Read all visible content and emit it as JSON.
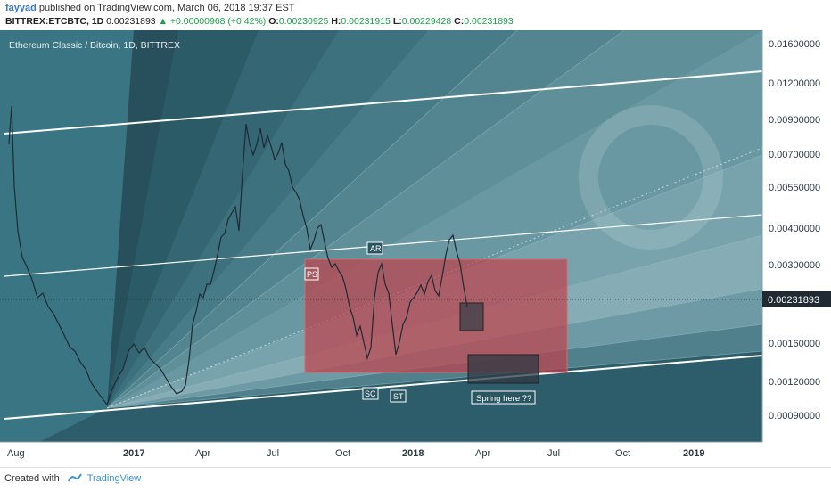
{
  "header": {
    "author": "fayyad",
    "published_text": "published on TradingView.com, March 06, 2018 19:37 EST",
    "symbol": "BITTREX:ETCBTC, 1D",
    "last_price": "0.00231893",
    "change": "▲ +0.00000968 (+0.42%)",
    "o_label": "O:",
    "o_value": "0.00230925",
    "h_label": "H:",
    "h_value": "0.00231915",
    "l_label": "L:",
    "l_value": "0.00229428",
    "c_label": "C:",
    "c_value": "0.00231893"
  },
  "chart": {
    "pane_title": "Ethereum Classic / Bitcoin, 1D, BITTREX",
    "price_scale": [
      "0.01600000",
      "0.01200000",
      "0.00900000",
      "0.00700000",
      "0.00550000",
      "0.00400000",
      "0.00300000",
      "0.00160000",
      "0.00120000",
      "0.00090000"
    ],
    "current_price_label": "0.00231893",
    "time_scale": [
      "Aug",
      "2017",
      "Apr",
      "Jul",
      "Oct",
      "2018",
      "Apr",
      "Jul",
      "Oct",
      "2019"
    ],
    "annotations": {
      "ps": "PS",
      "ar": "AR",
      "sc": "SC",
      "st": "ST",
      "spring": "Spring here ??"
    },
    "colors": {
      "background": "#3a7584",
      "range_box": "#c0404a",
      "channel_line": "#ffffff",
      "price_line": "#2a3440"
    }
  },
  "footer": {
    "created_with": "Created with",
    "brand": "TradingView"
  }
}
